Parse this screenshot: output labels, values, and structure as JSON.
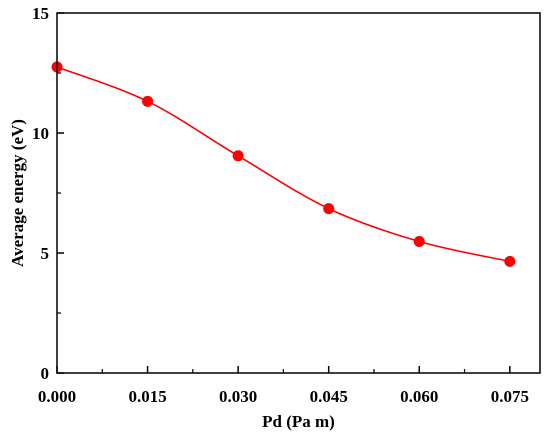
{
  "chart_data": {
    "type": "line",
    "title": "",
    "xlabel": "Pd (Pa m)",
    "ylabel": "Average energy (eV)",
    "xlim": [
      0,
      0.08
    ],
    "ylim": [
      0,
      15
    ],
    "x_ticks": [
      "0.000",
      "0.015",
      "0.030",
      "0.045",
      "0.060",
      "0.075"
    ],
    "x_tick_values": [
      0,
      0.015,
      0.03,
      0.045,
      0.06,
      0.075
    ],
    "y_ticks": [
      "0",
      "5",
      "10",
      "15"
    ],
    "y_tick_values": [
      0,
      5,
      10,
      15
    ],
    "grid": false,
    "legend": "none",
    "series": [
      {
        "x": [
          0,
          0.015,
          0.03,
          0.045,
          0.06,
          0.075
        ],
        "values": [
          12.75,
          11.32,
          9.05,
          6.85,
          5.48,
          4.65
        ],
        "markers": true,
        "smooth_line": true,
        "color": "#ff0000"
      }
    ]
  }
}
